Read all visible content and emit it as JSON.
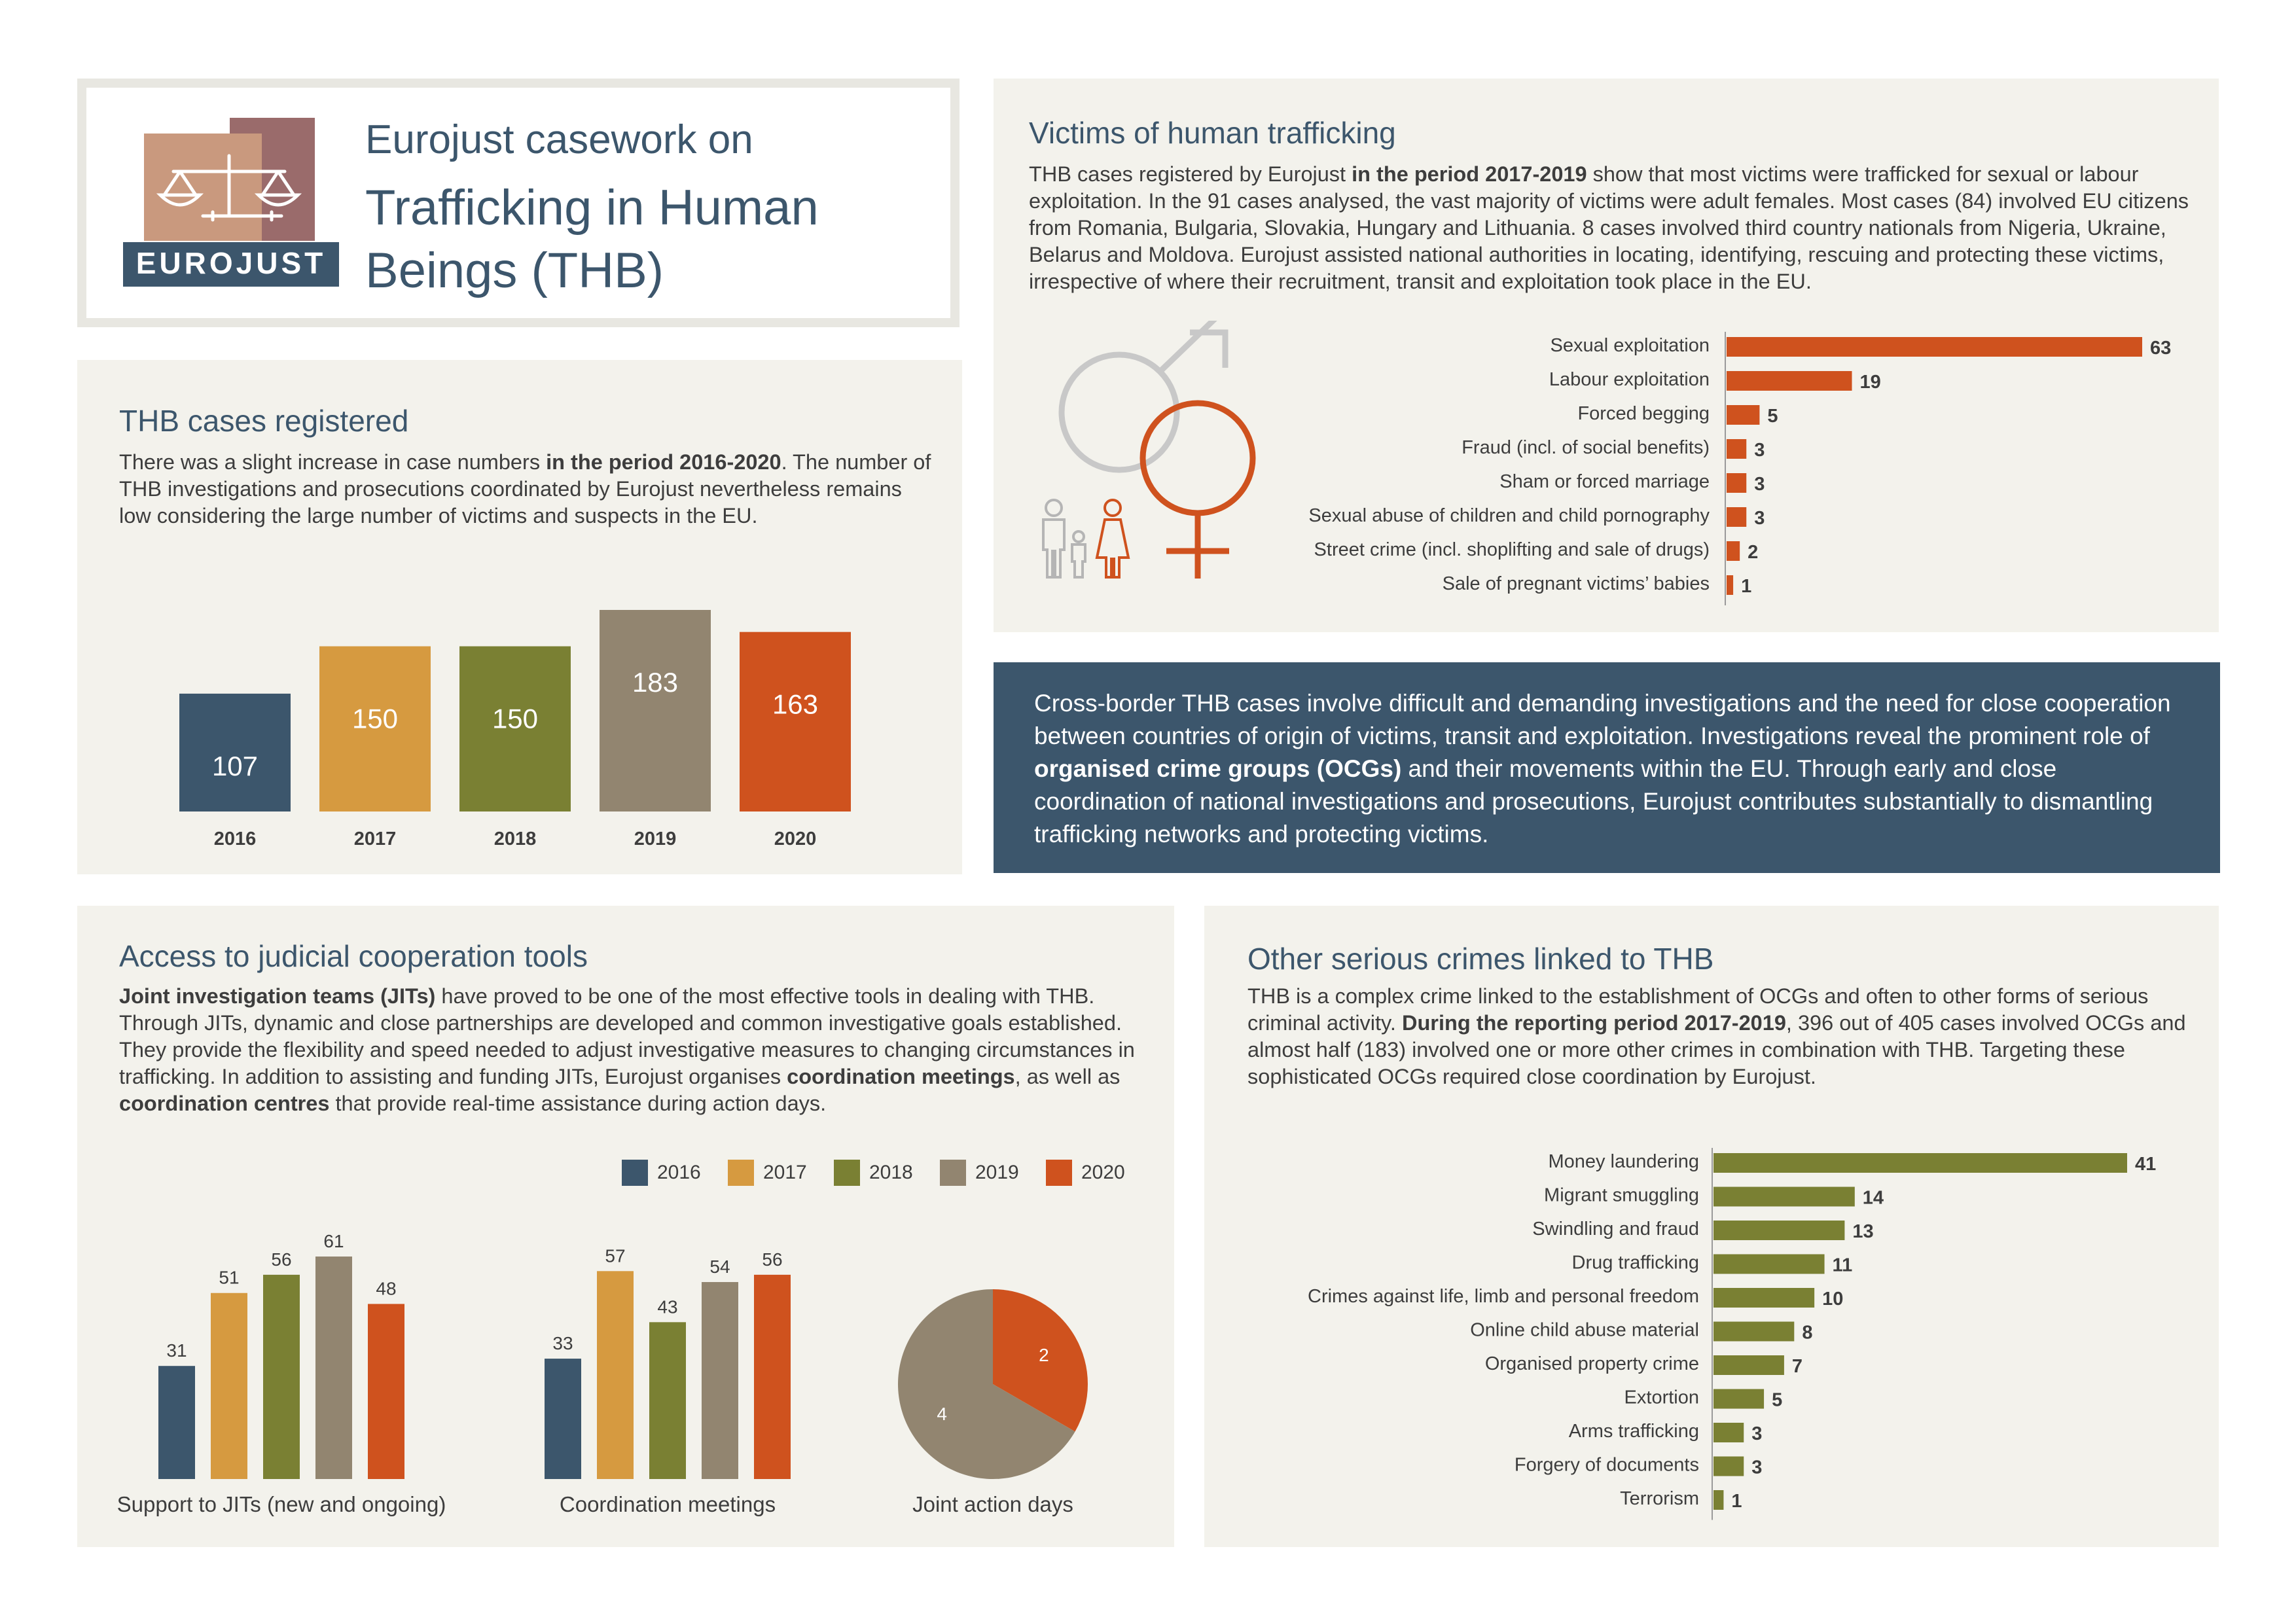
{
  "header": {
    "logo_text": "EUROJUST",
    "title_line1": "Eurojust casework on",
    "title_line2": "Trafficking in Human",
    "title_line3": "Beings (THB)"
  },
  "colors": {
    "y2016": "#3c566c",
    "y2017": "#d69a40",
    "y2018": "#7a8033",
    "y2019": "#928570",
    "y2020": "#cf521e",
    "victims_bar": "#cf521e",
    "crimes_bar": "#7a8033",
    "heading": "#3c566c"
  },
  "cases": {
    "title": "THB cases registered",
    "text_a": "There was a slight increase in case numbers ",
    "text_b": "in the period 2016-2020",
    "text_c": ". The number of THB investigations and prosecutions coordinated by Eurojust nevertheless remains low considering the large number of victims and suspects in the EU."
  },
  "victims": {
    "title": "Victims of human trafficking",
    "text_a": "THB cases registered by Eurojust ",
    "text_b": "in the period 2017-2019",
    "text_c": " show that most victims were trafficked for sexual or labour exploitation. In the 91 cases analysed, the vast majority of victims were adult females. Most cases (84) involved EU citizens from Romania, Bulgaria, Slovakia, Hungary and Lithuania. 8 cases involved third country nationals from Nigeria, Ukraine, Belarus and Moldova. Eurojust assisted national authorities in locating, identifying, rescuing and protecting these victims, irrespective of where their recruitment, transit and exploitation took place in the EU.",
    "icons": [
      "male-symbol-icon",
      "female-symbol-icon",
      "family-icon"
    ]
  },
  "callout": {
    "text_a": "Cross-border THB cases involve difficult and demanding investigations and the need for close cooperation between countries of origin of victims, transit and exploitation. Investigations reveal the prominent role of ",
    "text_b": "organised crime groups (OCGs)",
    "text_c": " and their movements within the EU. Through early and close coordination of national investigations and prosecutions, Eurojust contributes substantially to dismantling trafficking networks and protecting victims."
  },
  "tools": {
    "title": "Access to judicial cooperation tools",
    "text_b1": "Joint investigation teams (JITs)",
    "text_1": " have proved to be one of the most effective tools in dealing with THB. Through JITs, dynamic and close partnerships are developed and common investigative goals established. They provide the flexibility and speed needed to adjust investigative measures to changing circumstances in trafficking. In addition to assisting and funding JITs, Eurojust organises ",
    "text_b2": "coordination meetings",
    "text_2": ",  as well as ",
    "text_b3": "coordination centres",
    "text_3": " that provide real-time assistance during action days."
  },
  "crimes": {
    "title": "Other serious crimes linked to THB",
    "text_a": "THB is a complex crime linked to the establishment of OCGs and often to other forms of serious criminal activity. ",
    "text_b": "During the reporting period 2017-2019",
    "text_c": ", 396 out of 405 cases involved OCGs and almost half (183) involved one or more other crimes in combination with THB. Targeting these sophisticated OCGs required close coordination by Eurojust."
  },
  "chart_data": [
    {
      "id": "cases",
      "type": "bar",
      "title": "",
      "categories": [
        "2016",
        "2017",
        "2018",
        "2019",
        "2020"
      ],
      "values": [
        107,
        150,
        150,
        183,
        163
      ],
      "ylim": [
        0,
        183
      ],
      "grid": false,
      "data_labels": "inside"
    },
    {
      "id": "victims",
      "type": "bar",
      "orientation": "horizontal",
      "categories": [
        "Sexual exploitation",
        "Labour exploitation",
        "Forced begging",
        "Fraud (incl. of social benefits)",
        "Sham or forced marriage",
        "Sexual abuse of children and child pornography",
        "Street crime (incl. shoplifting and sale of drugs)",
        "Sale of pregnant victims’ babies"
      ],
      "values": [
        63,
        19,
        5,
        3,
        3,
        3,
        2,
        1
      ],
      "xlim": [
        0,
        63
      ],
      "grid": false
    },
    {
      "id": "crimes",
      "type": "bar",
      "orientation": "horizontal",
      "categories": [
        "Money laundering",
        "Migrant smuggling",
        "Swindling and fraud",
        "Drug trafficking",
        "Crimes against life, limb and personal freedom",
        "Online child abuse material",
        "Organised property crime",
        "Extortion",
        "Arms trafficking",
        "Forgery of documents",
        "Terrorism"
      ],
      "values": [
        41,
        14,
        13,
        11,
        10,
        8,
        7,
        5,
        3,
        3,
        1
      ],
      "xlim": [
        0,
        41
      ],
      "grid": false
    },
    {
      "id": "tools",
      "type": "bar",
      "legend": "top-right",
      "series_names": [
        "2016",
        "2017",
        "2018",
        "2019",
        "2020"
      ],
      "groups": [
        {
          "label": "Support to JITs (new and ongoing)",
          "values": [
            31,
            51,
            56,
            61,
            48
          ]
        },
        {
          "label": "Coordination meetings",
          "values": [
            33,
            57,
            43,
            54,
            56
          ]
        }
      ],
      "ylim": [
        0,
        61
      ],
      "grid": false
    },
    {
      "id": "action_days",
      "type": "pie",
      "label": "Joint action days",
      "slices": [
        {
          "series": "2019",
          "value": 4
        },
        {
          "series": "2020",
          "value": 2
        }
      ]
    }
  ]
}
